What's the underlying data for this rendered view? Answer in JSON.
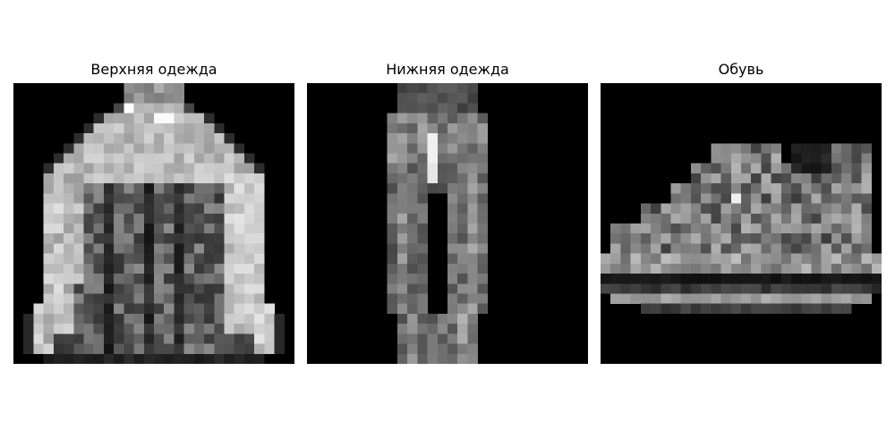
{
  "panels": [
    {
      "title": "Верхняя одежда",
      "subject": "jacket",
      "color": "#000000"
    },
    {
      "title": "Нижняя одежда",
      "subject": "trousers",
      "color": "#000000"
    },
    {
      "title": "Обувь",
      "subject": "sneaker",
      "color": "#000000"
    }
  ]
}
